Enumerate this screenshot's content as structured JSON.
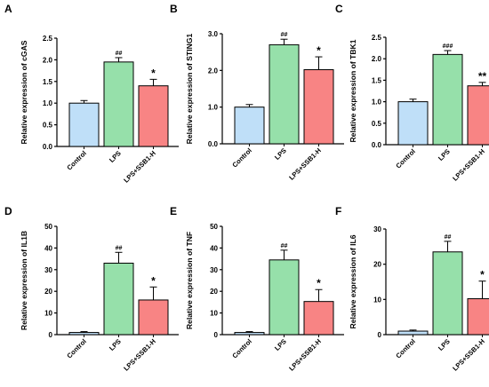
{
  "chart_data": [
    {
      "panel": "A",
      "type": "bar",
      "ylabel": "Relative expression of cGAS",
      "categories": [
        "Control",
        "LPS",
        "LPS+SSB1-H"
      ],
      "values": [
        1.0,
        1.95,
        1.4
      ],
      "errors": [
        0.06,
        0.1,
        0.15
      ],
      "significance": [
        "",
        "##",
        "*"
      ],
      "ylim": [
        0,
        2.5
      ],
      "yticks": [
        "0.0",
        "0.5",
        "1.0",
        "1.5",
        "2.0",
        "2.5"
      ],
      "colors": [
        "#bfdff8",
        "#96e0aa",
        "#f88484"
      ]
    },
    {
      "panel": "B",
      "type": "bar",
      "ylabel": "Relative expression of STING1",
      "categories": [
        "Control",
        "LPS",
        "LPS+SSB1-H"
      ],
      "values": [
        1.0,
        2.7,
        2.02
      ],
      "errors": [
        0.07,
        0.15,
        0.35
      ],
      "significance": [
        "",
        "##",
        "*"
      ],
      "ylim": [
        0,
        3.0
      ],
      "yticks": [
        "0.0",
        "1.0",
        "2.0",
        "3.0"
      ],
      "colors": [
        "#bfdff8",
        "#96e0aa",
        "#f88484"
      ]
    },
    {
      "panel": "C",
      "type": "bar",
      "ylabel": "Relative expression of TBK1",
      "categories": [
        "Control",
        "LPS",
        "LPS+SSB1-H"
      ],
      "values": [
        1.0,
        2.1,
        1.37
      ],
      "errors": [
        0.06,
        0.09,
        0.08
      ],
      "significance": [
        "",
        "###",
        "**"
      ],
      "ylim": [
        0,
        2.5
      ],
      "yticks": [
        "0.0",
        "0.5",
        "1.0",
        "1.5",
        "2.0",
        "2.5"
      ],
      "colors": [
        "#bfdff8",
        "#96e0aa",
        "#f88484"
      ]
    },
    {
      "panel": "D",
      "type": "bar",
      "ylabel": "Relative expression of IL1B",
      "categories": [
        "Control",
        "LPS",
        "LPS+SSB1-H"
      ],
      "values": [
        1.0,
        33.0,
        16.0
      ],
      "errors": [
        0.4,
        5.0,
        6.0
      ],
      "significance": [
        "",
        "##",
        "*"
      ],
      "ylim": [
        0,
        50
      ],
      "yticks": [
        "0",
        "10",
        "20",
        "30",
        "40",
        "50"
      ],
      "colors": [
        "#bfdff8",
        "#96e0aa",
        "#f88484"
      ]
    },
    {
      "panel": "E",
      "type": "bar",
      "ylabel": "Relative expression of TNF",
      "categories": [
        "Control",
        "LPS",
        "LPS+SSB1-H"
      ],
      "values": [
        1.0,
        34.5,
        15.3
      ],
      "errors": [
        0.4,
        4.5,
        5.5
      ],
      "significance": [
        "",
        "##",
        "*"
      ],
      "ylim": [
        0,
        50
      ],
      "yticks": [
        "0",
        "10",
        "20",
        "30",
        "40",
        "50"
      ],
      "colors": [
        "#bfdff8",
        "#96e0aa",
        "#f88484"
      ]
    },
    {
      "panel": "F",
      "type": "bar",
      "ylabel": "Relative expression of IL6",
      "categories": [
        "Control",
        "LPS",
        "LPS+SSB1-H"
      ],
      "values": [
        1.0,
        23.5,
        10.2
      ],
      "errors": [
        0.3,
        3.0,
        5.0
      ],
      "significance": [
        "",
        "##",
        "*"
      ],
      "ylim": [
        0,
        30
      ],
      "yticks": [
        "0",
        "10",
        "20",
        "30"
      ],
      "colors": [
        "#bfdff8",
        "#96e0aa",
        "#f88484"
      ]
    }
  ]
}
